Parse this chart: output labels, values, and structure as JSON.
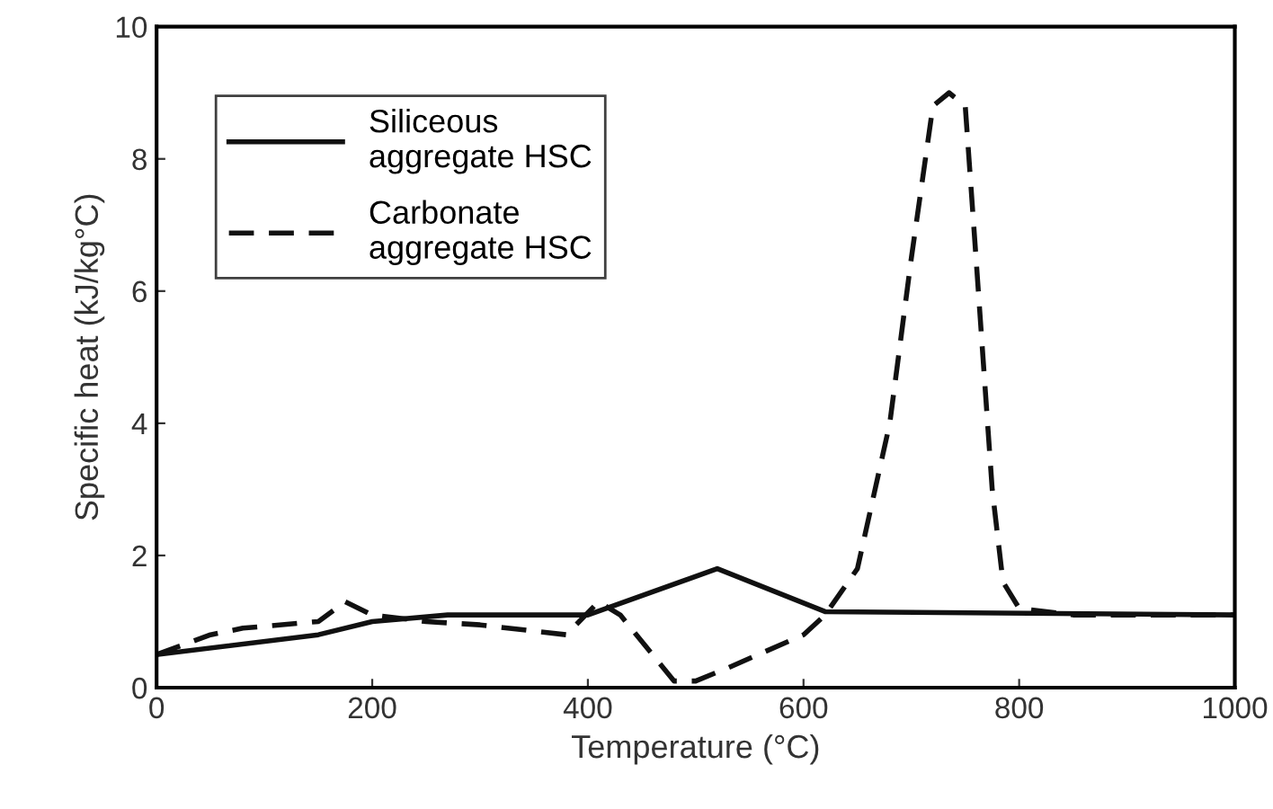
{
  "chart_data": {
    "type": "line",
    "xlabel": "Temperature (°C)",
    "ylabel": "Specific heat (kJ/kg°C)",
    "xlim": [
      0,
      1000
    ],
    "xticks": [
      0,
      200,
      400,
      600,
      800,
      1000
    ],
    "ylim": [
      0,
      10
    ],
    "yticks": [
      0,
      2,
      4,
      6,
      8,
      10
    ],
    "grid": false,
    "legend": "top left",
    "marker": "none",
    "series": [
      {
        "name": "Siliceous\naggregate HSC",
        "color": "#111111",
        "line_style": "solid",
        "x": [
          0,
          150,
          200,
          270,
          400,
          520,
          620,
          1000
        ],
        "values": [
          0.5,
          0.8,
          1.0,
          1.1,
          1.1,
          1.8,
          1.15,
          1.1
        ]
      },
      {
        "name": "Carbonate\naggregate HSC",
        "color": "#111111",
        "line_style": "dashed",
        "x": [
          0,
          50,
          80,
          150,
          175,
          200,
          250,
          300,
          380,
          410,
          430,
          480,
          500,
          530,
          600,
          620,
          650,
          680,
          700,
          720,
          735,
          750,
          760,
          775,
          785,
          800,
          850,
          1000
        ],
        "values": [
          0.5,
          0.8,
          0.9,
          1.0,
          1.3,
          1.1,
          1.0,
          0.95,
          0.8,
          1.3,
          1.1,
          0.1,
          0.1,
          0.3,
          0.8,
          1.1,
          1.8,
          4,
          6.5,
          8.8,
          9.0,
          8.8,
          6.5,
          3,
          1.6,
          1.2,
          1.1,
          1.1
        ]
      }
    ]
  }
}
